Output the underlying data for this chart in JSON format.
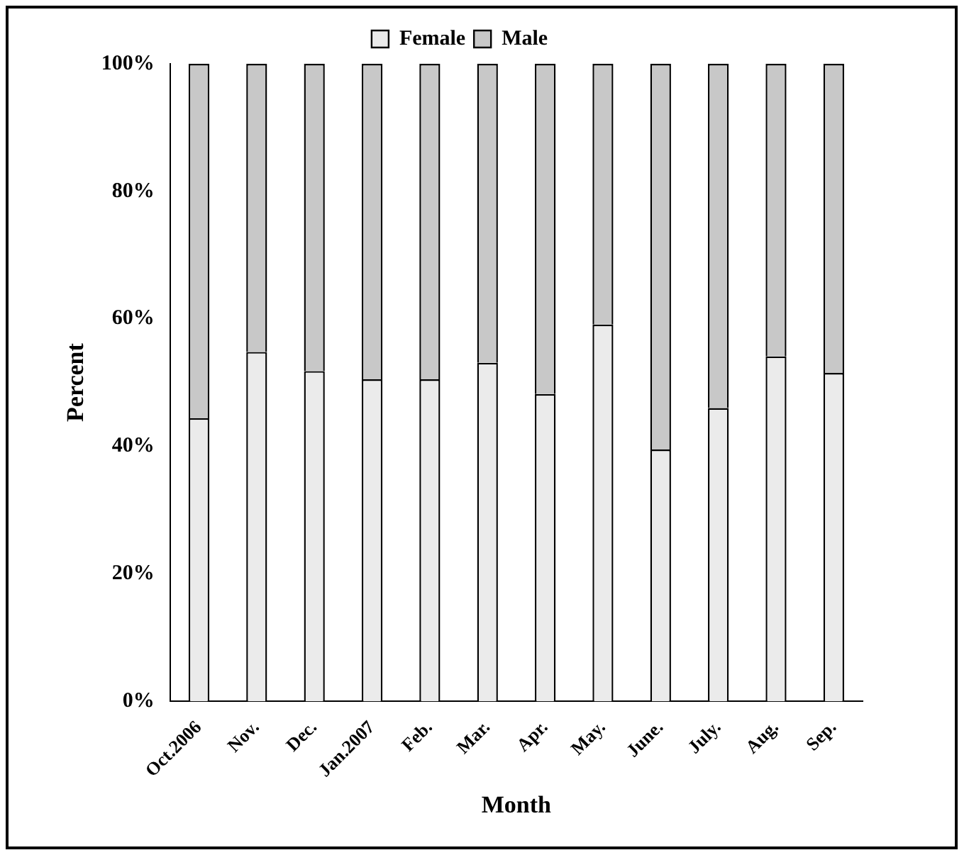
{
  "chart_data": {
    "type": "bar",
    "stacked": true,
    "xlabel": "Month",
    "ylabel": "Percent",
    "categories": [
      "Oct.2006",
      "Nov.",
      "Dec.",
      "Jan.2007",
      "Feb.",
      "Mar.",
      "Apr.",
      "May.",
      "June.",
      "July.",
      "Aug.",
      "Sep."
    ],
    "series": [
      {
        "name": "Female",
        "color": "#ebebeb",
        "values": [
          44.4,
          54.8,
          51.8,
          50.5,
          50.5,
          53.1,
          48.2,
          59.1,
          39.5,
          46.0,
          54.1,
          51.5
        ]
      },
      {
        "name": "Male",
        "color": "#c8c8c8",
        "values": [
          55.6,
          45.2,
          48.2,
          49.5,
          49.5,
          46.9,
          51.8,
          40.9,
          60.5,
          54.0,
          45.9,
          48.5
        ]
      }
    ],
    "ylim": [
      0,
      100
    ],
    "yticks": [
      {
        "value": 0,
        "label": "0%"
      },
      {
        "value": 20,
        "label": "20%"
      },
      {
        "value": 40,
        "label": "40%"
      },
      {
        "value": 60,
        "label": "60%"
      },
      {
        "value": 80,
        "label": "80%"
      },
      {
        "value": 100,
        "label": "100%"
      }
    ],
    "grid": false,
    "legend": "top"
  }
}
